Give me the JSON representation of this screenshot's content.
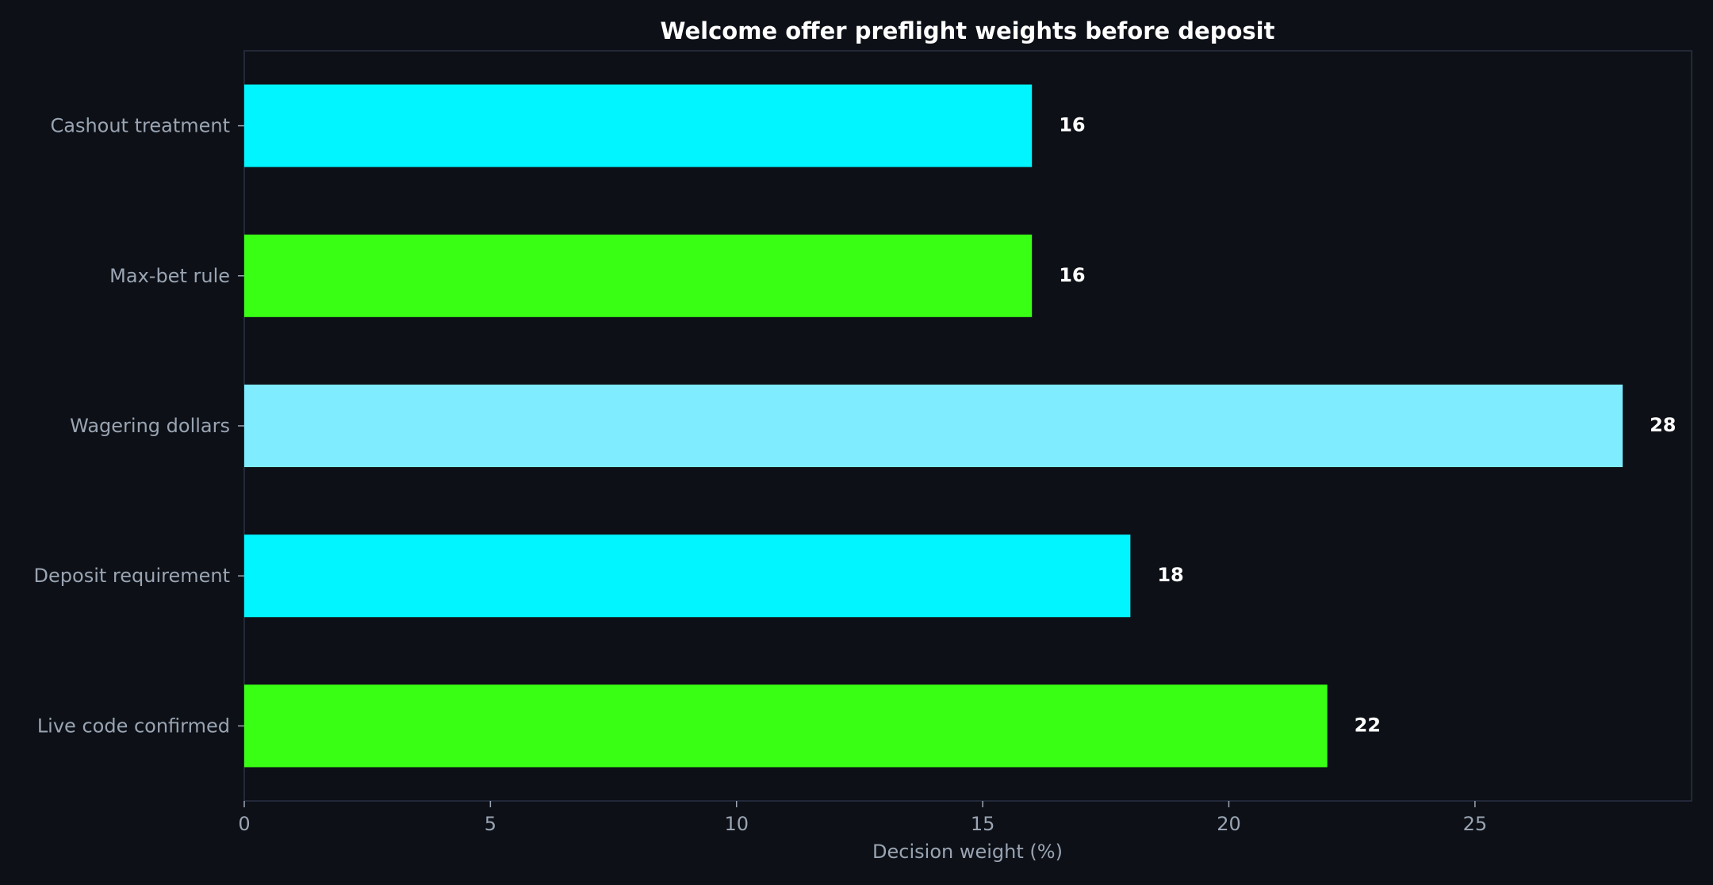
{
  "chart_data": {
    "type": "bar",
    "orientation": "horizontal",
    "title": "Welcome offer preflight weights before deposit",
    "xlabel": "Decision weight (%)",
    "ylabel": "",
    "categories": [
      "Cashout treatment",
      "Max-bet rule",
      "Wagering dollars",
      "Deposit requirement",
      "Live code confirmed"
    ],
    "values": [
      16,
      16,
      28,
      18,
      22
    ],
    "value_labels": [
      "16",
      "16",
      "28",
      "18",
      "22"
    ],
    "bar_colors": [
      "#00f5ff",
      "#39ff14",
      "#7fecff",
      "#00f5ff",
      "#39ff14"
    ],
    "xlim": [
      0,
      29.4
    ],
    "xticks": [
      0,
      5,
      10,
      15,
      20,
      25
    ],
    "xtick_labels": [
      "0",
      "5",
      "10",
      "15",
      "20",
      "25"
    ],
    "grid": false,
    "legend": "none",
    "colors": {
      "background": "#0d1117",
      "axes_frame": "#2a3142",
      "tick_text": "#9aa4b2",
      "title_text": "#ffffff",
      "value_text": "#ffffff"
    }
  }
}
